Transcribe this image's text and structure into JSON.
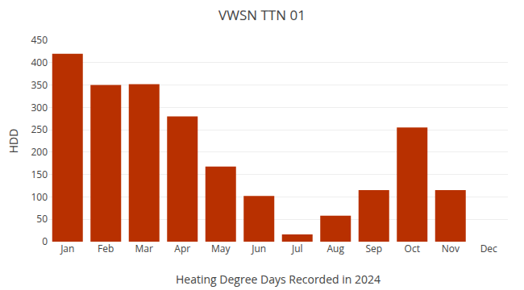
{
  "chart_data": {
    "type": "bar",
    "title": "VWSN TTN 01",
    "xlabel": "Heating Degree Days Recorded in 2024",
    "ylabel": "HDD",
    "categories": [
      "Jan",
      "Feb",
      "Mar",
      "Apr",
      "May",
      "Jun",
      "Jul",
      "Aug",
      "Sep",
      "Oct",
      "Nov",
      "Dec"
    ],
    "values": [
      420,
      350,
      352,
      280,
      168,
      102,
      16,
      58,
      115,
      255,
      115,
      0
    ],
    "color": "#b83000",
    "ylim": [
      0,
      450
    ],
    "yticks": [
      0,
      50,
      100,
      150,
      200,
      250,
      300,
      350,
      400,
      450
    ],
    "grid": true
  }
}
